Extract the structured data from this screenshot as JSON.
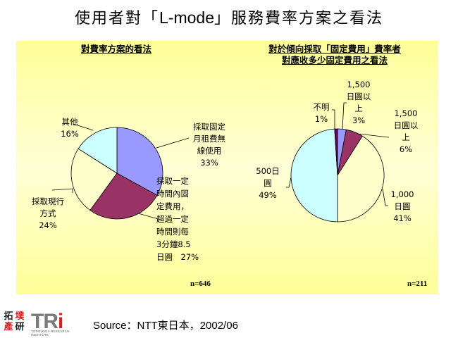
{
  "page": {
    "title_prefix": "使用者對「",
    "title_latin": "L-mode",
    "title_suffix": "」服務費率方案之看法",
    "panel_color": "#FFFF99"
  },
  "charts": {
    "left": {
      "title": "對費率方案的看法",
      "n_label": "n=646",
      "labels": {
        "fixed_monthly": "採取固定\n月租費無\n線使用\n33%",
        "fixed_then_metered": "採取一定\n時間內固\n定費用，\n超過一定\n時間則每\n3分鐘8.5\n日圓　27%",
        "current": "採取現行\n方式\n24%",
        "other": "其他\n16%"
      }
    },
    "right": {
      "title_line1": "對於傾向採取「固定費用」費率者",
      "title_line2": "對應收多少固定費用之看法",
      "n_label": "n=211",
      "labels": {
        "over1500_a": "1,500\n日圓以\n上\n3%",
        "over1500_b": "1,500\n日圓以\n上\n6%",
        "yen1000": "1,000\n日圓\n41%",
        "yen500": "500日\n圓\n49%",
        "unknown": "不明\n1%"
      }
    }
  },
  "footer": {
    "source": "Source：NTT東日本，2002/06",
    "logo_cn": [
      "拓",
      "墣",
      "產",
      "研"
    ],
    "logo_tri_main": "TR",
    "logo_tri_i": "i",
    "logo_subtitle": "TOPOLOGY RESEARCH INSTITUTE"
  },
  "chart_data": [
    {
      "type": "pie",
      "title": "對費率方案的看法",
      "categories": [
        "採取固定月租費無線使用",
        "採取一定時間內固定費用，超過一定時間則每3分鐘8.5日圓",
        "採取現行方式",
        "其他"
      ],
      "values": [
        33,
        27,
        24,
        16
      ],
      "colors": [
        "#9999FF",
        "#993366",
        "#FFFFCC",
        "#CCFFFF"
      ],
      "unit": "%",
      "n": 646
    },
    {
      "type": "pie",
      "title": "對於傾向採取「固定費用」費率者對應收多少固定費用之看法",
      "categories": [
        "1,500日圓以上",
        "1,500日圓以上",
        "1,000日圓",
        "500日圓",
        "不明"
      ],
      "values": [
        3,
        6,
        41,
        49,
        1
      ],
      "colors": [
        "#9999FF",
        "#993366",
        "#FFFFCC",
        "#CCFFFF",
        "#660066"
      ],
      "unit": "%",
      "n": 211
    }
  ]
}
